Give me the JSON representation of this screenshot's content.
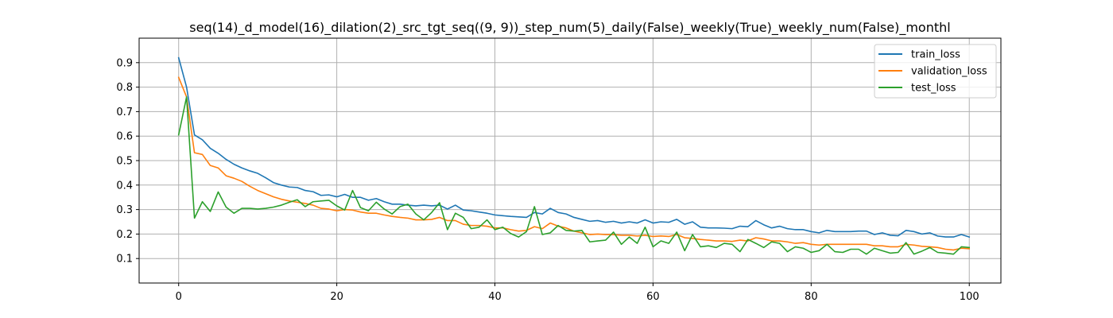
{
  "chart_data": {
    "type": "line",
    "title": "seq(14)_d_model(16)_dilation(2)_src_tgt_seq((9, 9))_step_num(5)_daily(False)_weekly(True)_weekly_num(False)_monthl",
    "xlabel": "",
    "ylabel": "",
    "xlim": [
      -5,
      104
    ],
    "ylim": [
      0.0,
      1.0
    ],
    "x_ticks": [
      0,
      20,
      40,
      60,
      80,
      100
    ],
    "y_ticks": [
      0.1,
      0.2,
      0.3,
      0.4,
      0.5,
      0.6,
      0.7,
      0.8,
      0.9
    ],
    "grid": true,
    "legend_position": "top-right",
    "series": [
      {
        "name": "train_loss",
        "color": "#1f77b4",
        "values": [
          0.92,
          0.8,
          0.605,
          0.585,
          0.55,
          0.53,
          0.505,
          0.485,
          0.47,
          0.458,
          0.448,
          0.43,
          0.41,
          0.4,
          0.392,
          0.39,
          0.378,
          0.373,
          0.358,
          0.36,
          0.352,
          0.362,
          0.35,
          0.35,
          0.338,
          0.345,
          0.332,
          0.322,
          0.322,
          0.318,
          0.315,
          0.318,
          0.315,
          0.318,
          0.302,
          0.318,
          0.298,
          0.295,
          0.29,
          0.285,
          0.278,
          0.275,
          0.272,
          0.27,
          0.268,
          0.288,
          0.282,
          0.305,
          0.288,
          0.282,
          0.268,
          0.26,
          0.252,
          0.255,
          0.248,
          0.252,
          0.245,
          0.25,
          0.245,
          0.258,
          0.245,
          0.25,
          0.248,
          0.26,
          0.24,
          0.25,
          0.228,
          0.225,
          0.225,
          0.224,
          0.222,
          0.232,
          0.23,
          0.255,
          0.238,
          0.225,
          0.232,
          0.222,
          0.218,
          0.218,
          0.21,
          0.205,
          0.215,
          0.21,
          0.21,
          0.21,
          0.212,
          0.212,
          0.198,
          0.205,
          0.195,
          0.193,
          0.215,
          0.21,
          0.2,
          0.205,
          0.192,
          0.188,
          0.188,
          0.198,
          0.188
        ]
      },
      {
        "name": "validation_loss",
        "color": "#ff7f0e",
        "values": [
          0.84,
          0.76,
          0.532,
          0.525,
          0.48,
          0.47,
          0.438,
          0.428,
          0.415,
          0.395,
          0.378,
          0.365,
          0.352,
          0.342,
          0.335,
          0.33,
          0.325,
          0.318,
          0.305,
          0.302,
          0.295,
          0.3,
          0.298,
          0.29,
          0.285,
          0.285,
          0.278,
          0.272,
          0.268,
          0.265,
          0.258,
          0.258,
          0.26,
          0.268,
          0.255,
          0.255,
          0.24,
          0.235,
          0.235,
          0.232,
          0.225,
          0.225,
          0.218,
          0.212,
          0.215,
          0.23,
          0.222,
          0.245,
          0.232,
          0.225,
          0.212,
          0.205,
          0.198,
          0.2,
          0.198,
          0.198,
          0.195,
          0.195,
          0.192,
          0.195,
          0.19,
          0.192,
          0.19,
          0.198,
          0.185,
          0.182,
          0.178,
          0.175,
          0.172,
          0.172,
          0.17,
          0.175,
          0.172,
          0.185,
          0.18,
          0.172,
          0.172,
          0.168,
          0.162,
          0.165,
          0.158,
          0.155,
          0.158,
          0.158,
          0.158,
          0.158,
          0.158,
          0.158,
          0.152,
          0.152,
          0.148,
          0.148,
          0.158,
          0.155,
          0.15,
          0.148,
          0.145,
          0.138,
          0.135,
          0.142,
          0.14
        ]
      },
      {
        "name": "test_loss",
        "color": "#2ca02c",
        "values": [
          0.605,
          0.76,
          0.265,
          0.332,
          0.292,
          0.372,
          0.31,
          0.285,
          0.305,
          0.305,
          0.302,
          0.305,
          0.31,
          0.318,
          0.33,
          0.34,
          0.312,
          0.332,
          0.335,
          0.338,
          0.315,
          0.298,
          0.378,
          0.308,
          0.295,
          0.33,
          0.302,
          0.282,
          0.312,
          0.322,
          0.282,
          0.258,
          0.288,
          0.328,
          0.218,
          0.285,
          0.268,
          0.222,
          0.228,
          0.258,
          0.218,
          0.228,
          0.202,
          0.188,
          0.21,
          0.312,
          0.198,
          0.205,
          0.235,
          0.215,
          0.212,
          0.215,
          0.168,
          0.172,
          0.175,
          0.208,
          0.158,
          0.188,
          0.162,
          0.228,
          0.148,
          0.172,
          0.162,
          0.208,
          0.132,
          0.198,
          0.148,
          0.152,
          0.145,
          0.162,
          0.158,
          0.128,
          0.178,
          0.162,
          0.145,
          0.168,
          0.162,
          0.128,
          0.148,
          0.142,
          0.125,
          0.132,
          0.158,
          0.128,
          0.125,
          0.138,
          0.138,
          0.118,
          0.142,
          0.132,
          0.122,
          0.125,
          0.165,
          0.118,
          0.13,
          0.145,
          0.125,
          0.122,
          0.118,
          0.148,
          0.145
        ]
      }
    ]
  }
}
